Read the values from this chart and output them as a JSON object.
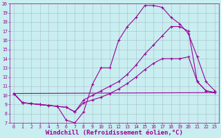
{
  "xlabel": "Windchill (Refroidissement éolien,°C)",
  "xlim": [
    -0.5,
    23.5
  ],
  "ylim": [
    7,
    20
  ],
  "xticks": [
    0,
    1,
    2,
    3,
    4,
    5,
    6,
    7,
    8,
    9,
    10,
    11,
    12,
    13,
    14,
    15,
    16,
    17,
    18,
    19,
    20,
    21,
    22,
    23
  ],
  "yticks": [
    7,
    8,
    9,
    10,
    11,
    12,
    13,
    14,
    15,
    16,
    17,
    18,
    19,
    20
  ],
  "background_color": "#c8eef0",
  "grid_color": "#aabbcc",
  "line_color": "#990099",
  "line1_x": [
    0,
    1,
    2,
    3,
    4,
    5,
    6,
    7,
    8,
    9,
    10,
    11,
    12,
    13,
    14,
    15,
    16,
    17,
    18,
    19,
    20,
    21,
    22,
    23
  ],
  "line1_y": [
    10.2,
    9.2,
    9.1,
    9.0,
    8.9,
    8.8,
    7.3,
    7.0,
    8.2,
    11.2,
    13.0,
    13.0,
    16.0,
    17.5,
    18.5,
    19.8,
    19.8,
    19.6,
    18.5,
    17.8,
    16.7,
    14.2,
    11.5,
    10.5
  ],
  "line2_x": [
    0,
    1,
    2,
    3,
    4,
    5,
    6,
    7,
    8,
    9,
    10,
    11,
    12,
    13,
    14,
    15,
    16,
    17,
    18,
    19,
    20,
    21,
    22,
    23
  ],
  "line2_y": [
    10.2,
    9.2,
    9.1,
    9.0,
    8.9,
    8.8,
    8.7,
    8.2,
    9.5,
    10.0,
    10.5,
    11.0,
    11.5,
    12.3,
    13.3,
    14.5,
    15.5,
    16.5,
    17.5,
    17.5,
    17.0,
    11.5,
    10.5,
    10.3
  ],
  "line3_x": [
    0,
    1,
    2,
    3,
    4,
    5,
    6,
    7,
    8,
    9,
    10,
    11,
    12,
    13,
    14,
    15,
    16,
    17,
    18,
    19,
    20,
    21,
    22,
    23
  ],
  "line3_y": [
    10.2,
    9.2,
    9.1,
    9.0,
    8.9,
    8.8,
    8.7,
    8.2,
    9.2,
    9.5,
    9.8,
    10.2,
    10.7,
    11.3,
    12.0,
    12.8,
    13.5,
    14.0,
    14.0,
    14.0,
    14.2,
    11.5,
    10.5,
    10.3
  ],
  "line4_x": [
    0,
    23
  ],
  "line4_y": [
    10.2,
    10.3
  ],
  "marker": "+",
  "markersize": 3.5,
  "linewidth": 0.8,
  "tick_fontsize": 4.8,
  "xlabel_fontsize": 6.5,
  "xlabel_fontweight": "bold"
}
